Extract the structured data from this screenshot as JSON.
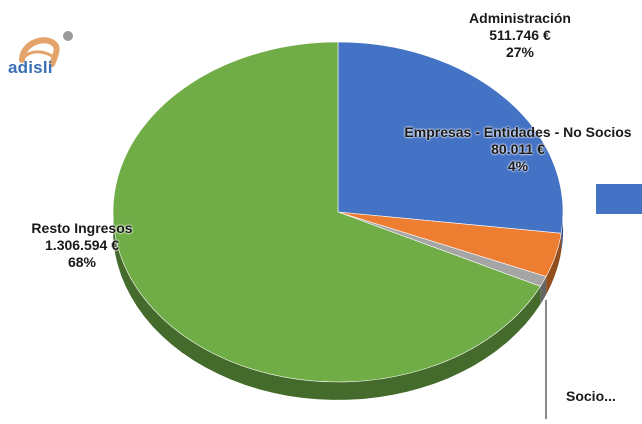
{
  "logo": {
    "text": "adisli"
  },
  "chart_data": {
    "type": "pie",
    "style": "3d",
    "slices": [
      {
        "name": "Administración",
        "value_label": "511.746 €",
        "percent_label": "27%",
        "percent": 27.0,
        "color": "#4472c4"
      },
      {
        "name": "Empresas - Entidades - No Socios",
        "value_label": "80.011 €",
        "percent_label": "4%",
        "percent": 4.2,
        "color": "#ed7d31"
      },
      {
        "name": "Socio...",
        "value_label": "",
        "percent_label": "",
        "percent": 1.0,
        "color": "#a5a5a5"
      },
      {
        "name": "Resto Ingresos",
        "value_label": "1.306.594 €",
        "percent_label": "68%",
        "percent": 67.8,
        "color": "#70ad47"
      }
    ],
    "legend": {
      "placement": "right",
      "color": "#4472c4"
    }
  },
  "colors": {
    "logo_blue": "#3a6fb5",
    "logo_swoosh": "#e3a36a",
    "logo_dot": "#9a9a9a"
  }
}
